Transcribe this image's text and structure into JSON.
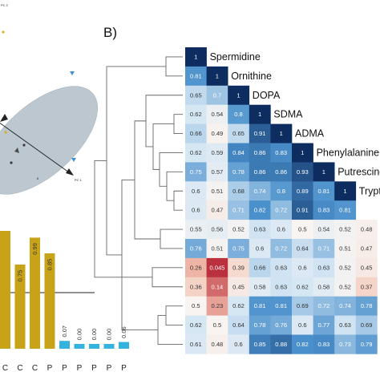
{
  "panel_b_label": "B)",
  "colors": {
    "high": "#0d2c5f",
    "mid": "#4a90cc",
    "low_blue": "#d6e7f4",
    "neutral": "#f7f4f1",
    "low_red": "#f3c0ae",
    "min": "#b0142a",
    "bar_gold": "#c8a217",
    "bar_blue": "#33b3de",
    "dendrogram": "#666666",
    "ellipse": "#b6c1ca"
  },
  "icons": [
    "dendrogram-tree",
    "pca-ellipse"
  ],
  "chart_data": [
    {
      "type": "heatmap",
      "title": "",
      "diagonal_labels": [
        "Spermidine",
        "Ornithine",
        "DOPA",
        "SDMA",
        "ADMA",
        "Phenylalanine",
        "Putrescine",
        "Trypt"
      ],
      "matrix": [
        [
          "1"
        ],
        [
          "0.81",
          "1"
        ],
        [
          "0.65",
          "0.7",
          "1"
        ],
        [
          "0.62",
          "0.54",
          "0.8",
          "1"
        ],
        [
          "0.66",
          "0.49",
          "0.65",
          "0.91",
          "1"
        ],
        [
          "0.62",
          "0.59",
          "0.84",
          "0.86",
          "0.83",
          "1"
        ],
        [
          "0.75",
          "0.57",
          "0.78",
          "0.86",
          "0.86",
          "0.93",
          "1"
        ],
        [
          "0.6",
          "0.51",
          "0.68",
          "0.74",
          "0.8",
          "0.89",
          "0.81",
          "1"
        ],
        [
          "0.6",
          "0.47",
          "0.71",
          "0.82",
          "0.72",
          "0.91",
          "0.83",
          "0.81"
        ],
        [
          "0.55",
          "0.56",
          "0.52",
          "0.63",
          "0.6",
          "0.5",
          "0.54",
          "0.52",
          "0.48"
        ],
        [
          "0.76",
          "0.51",
          "0.75",
          "0.6",
          "0.72",
          "0.64",
          "0.71",
          "0.51",
          "0.47"
        ],
        [
          "0.26",
          "0.045",
          "0.39",
          "0.66",
          "0.63",
          "0.6",
          "0.63",
          "0.52",
          "0.45"
        ],
        [
          "0.36",
          "0.14",
          "0.45",
          "0.58",
          "0.63",
          "0.62",
          "0.58",
          "0.52",
          "0.37"
        ],
        [
          "0.5",
          "0.23",
          "0.62",
          "0.81",
          "0.81",
          "0.69",
          "0.72",
          "0.74",
          "0.78"
        ],
        [
          "0.62",
          "0.5",
          "0.64",
          "0.78",
          "0.76",
          "0.6",
          "0.77",
          "0.63",
          "0.69"
        ],
        [
          "0.61",
          "0.48",
          "0.6",
          "0.85",
          "0.88",
          "0.82",
          "0.83",
          "0.73",
          "0.79"
        ]
      ]
    },
    {
      "type": "bar",
      "title": "",
      "categories": [
        "C",
        "C",
        "C",
        "P",
        "P",
        "P",
        "P",
        "P",
        "P"
      ],
      "values": [
        null,
        0.75,
        0.99,
        0.85,
        0.07,
        0.0,
        0.0,
        0.0,
        0.06
      ],
      "value_labels": [
        "",
        "0.75",
        "0.99",
        "0.85",
        "0.07",
        "0.00",
        "0.00",
        "0.00",
        "0.06"
      ],
      "bar_colors": [
        "gold",
        "gold",
        "gold",
        "gold",
        "blue",
        "blue",
        "blue",
        "blue",
        "blue"
      ],
      "ylim": [
        0,
        1.05
      ],
      "reference_line": 0.5
    },
    {
      "type": "scatter",
      "title": "",
      "axis_labels": [
        "PC 1",
        "PC 2"
      ],
      "tick_label": "6",
      "grid": false
    }
  ]
}
